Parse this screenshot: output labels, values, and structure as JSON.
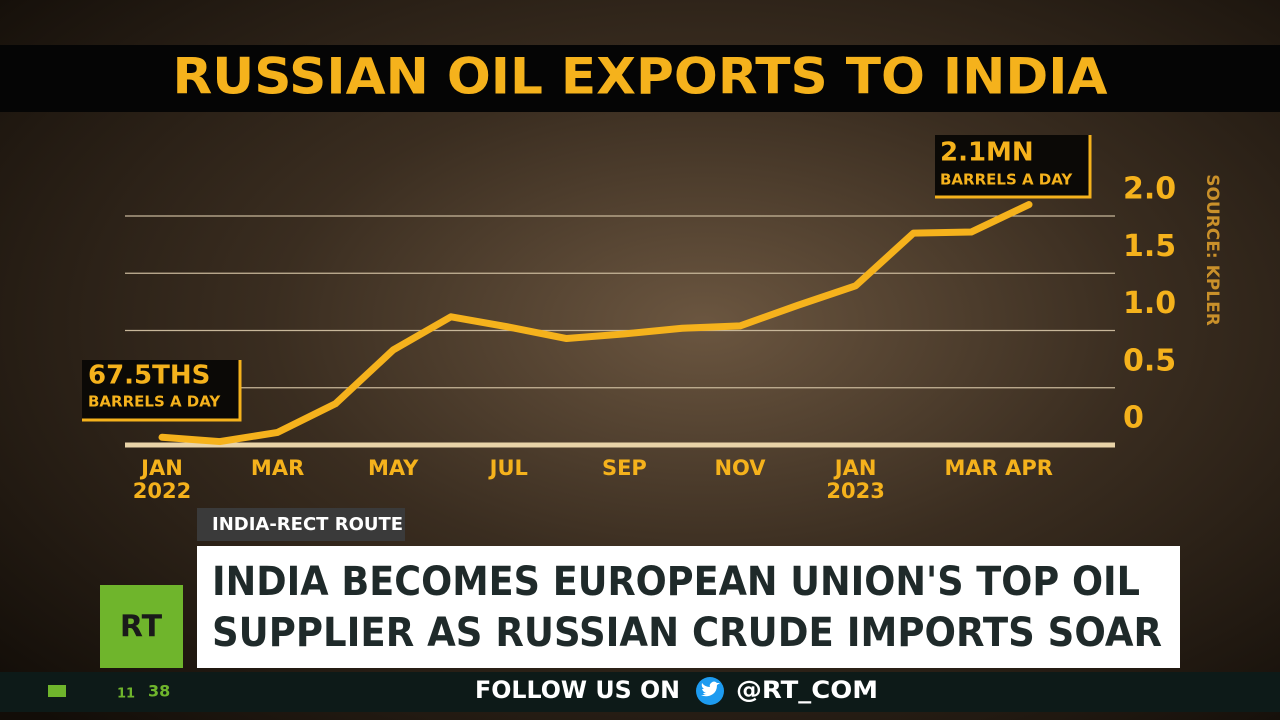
{
  "chart_data": {
    "type": "line",
    "title": "RUSSIAN OIL EXPORTS TO INDIA",
    "categories": [
      "JAN 2022",
      null,
      "MAR",
      null,
      "MAY",
      null,
      "JUL",
      null,
      "SEP",
      null,
      "NOV",
      null,
      "JAN 2023",
      null,
      "MAR",
      "APR"
    ],
    "values": [
      0.0675,
      0.03,
      0.11,
      0.36,
      0.83,
      1.12,
      1.03,
      0.93,
      0.97,
      1.02,
      1.04,
      1.22,
      1.39,
      1.85,
      1.86,
      2.1
    ],
    "color": "#f5b21c",
    "ylim": [
      0,
      2.2
    ],
    "yticks": [
      0,
      0.5,
      {
        "value": 1,
        "label": "1.0"
      },
      1.5,
      {
        "value": 2,
        "label": "2.0"
      }
    ],
    "grid": true,
    "source": "SOURCE: KPLER",
    "annotations": [
      {
        "value": "67.5THS",
        "unit": "BARRELS A DAY"
      },
      {
        "value": "2.1MN",
        "unit": "BARRELS A DAY"
      }
    ]
  },
  "broadcast": {
    "tag": "INDIA-RECT ROUTE",
    "headline": [
      "INDIA BECOMES EUROPEAN UNION'S TOP OIL",
      "SUPPLIER AS RUSSIAN CRUDE IMPORTS SOAR"
    ],
    "logo": "RT",
    "follow": "FOLLOW US ON",
    "handle": "@RT_COM",
    "clock": [
      "11",
      "38"
    ]
  }
}
